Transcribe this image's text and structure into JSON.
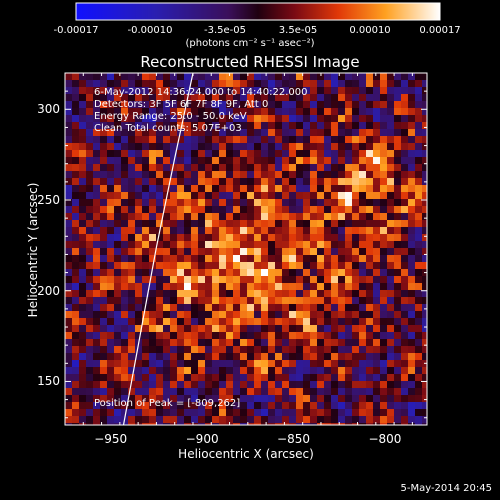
{
  "chart_data": {
    "type": "heatmap",
    "title": "Reconstructed RHESSI Image",
    "xlabel": "Heliocentric X (arcsec)",
    "ylabel": "Heliocentric Y (arcsec)",
    "xlim": [
      -975,
      -777
    ],
    "ylim": [
      126,
      320
    ],
    "xticks": [
      -950,
      -900,
      -850,
      -800
    ],
    "yticks": [
      150,
      200,
      250,
      300
    ],
    "colorbar": {
      "ticks": [
        "-0.00017",
        "-0.00010",
        "-3.5e-05",
        "3.5e-05",
        "0.00010",
        "0.00017"
      ],
      "units": "(photons cm⁻² s⁻¹ asec⁻²)",
      "range": [
        -0.00017,
        0.00017
      ]
    },
    "annotations": {
      "time": "6-May-2012 14:36:24.000 to 14:40:22.000",
      "detectors": "Detectors: 3F 5F 6F 7F 8F 9F, Att 0",
      "energy": "Energy Range: 25.0 - 50.0 keV",
      "clean": "Clean    Total counts: 5.07E+03",
      "peak": "Position of Peak = [-809,262]"
    },
    "peak": [
      -809,
      262
    ],
    "limb_points": [
      [
        -943,
        126
      ],
      [
        -934,
        175
      ],
      [
        -925,
        224
      ],
      [
        -915,
        273
      ],
      [
        -905,
        320
      ]
    ]
  },
  "footer": "5-May-2014 20:45",
  "colors": {
    "background": "#000000",
    "axes": "#ffffff",
    "limb": "#ffffff"
  }
}
